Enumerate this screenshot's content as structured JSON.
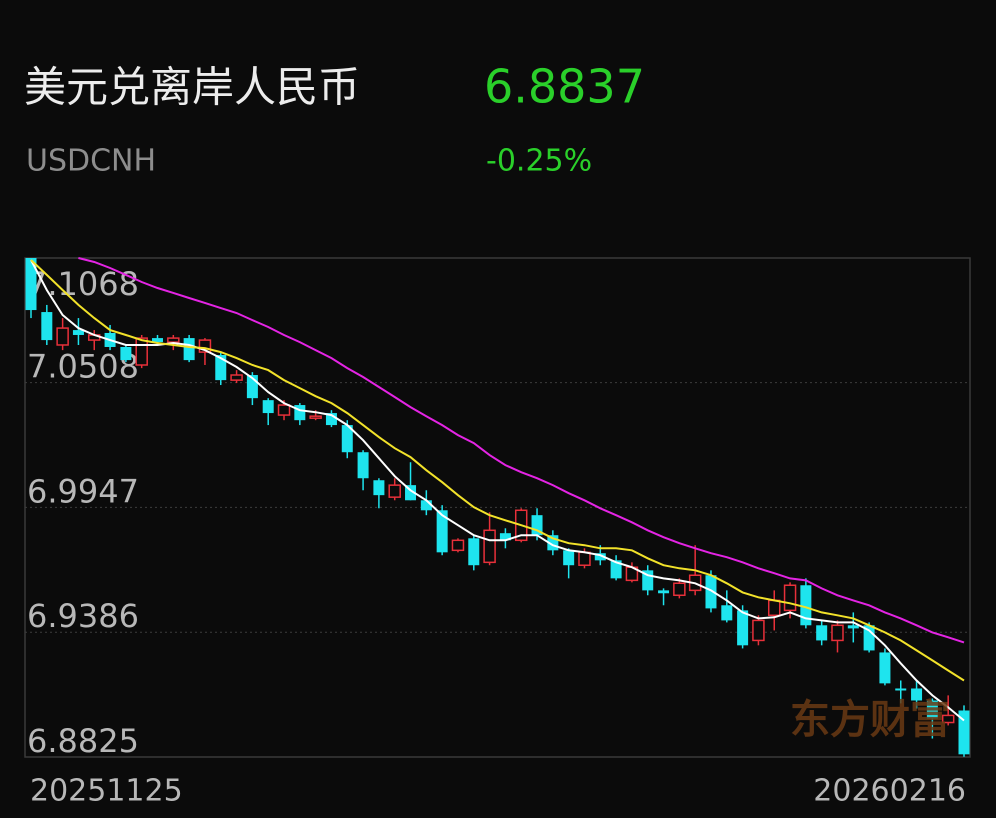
{
  "chart_data": {
    "type": "candlestick",
    "title": "美元兑离岸人民币",
    "price": "6.8837",
    "subtitle": "USDCNH",
    "change": "-0.25%",
    "watermark": "东方财富",
    "categories": [
      "20251125",
      null,
      null,
      null,
      null,
      null,
      null,
      null,
      null,
      null,
      null,
      null,
      null,
      null,
      null,
      null,
      null,
      null,
      null,
      null,
      null,
      null,
      null,
      null,
      null,
      null,
      null,
      null,
      null,
      null,
      null,
      null,
      null,
      null,
      null,
      null,
      null,
      null,
      null,
      null,
      null,
      null,
      null,
      null,
      null,
      null,
      null,
      null,
      null,
      null,
      null,
      null,
      null,
      null,
      null,
      null,
      null,
      null,
      null,
      "20260216"
    ],
    "open": [
      7.1068,
      7.0825,
      7.0677,
      7.0744,
      7.0699,
      7.0731,
      7.0668,
      7.0587,
      7.0708,
      7.069,
      7.0708,
      7.0645,
      7.0632,
      7.0519,
      7.0542,
      7.0429,
      7.0362,
      7.0407,
      7.0348,
      7.0371,
      7.0317,
      7.0195,
      7.0069,
      6.9993,
      7.0047,
      6.9979,
      6.9934,
      6.9754,
      6.9808,
      6.97,
      6.9831,
      6.9799,
      6.9912,
      6.9822,
      6.9754,
      6.9687,
      6.9741,
      6.9709,
      6.9619,
      6.9664,
      6.9574,
      6.9552,
      6.9574,
      6.9642,
      6.9507,
      6.9484,
      6.9349,
      6.9462,
      6.9484,
      6.9597,
      6.9417,
      6.9349,
      6.9417,
      6.9417,
      6.9295,
      6.9133,
      6.9133,
      6.9079,
      6.898,
      6.9034
    ],
    "close": [
      7.0834,
      7.0699,
      7.0753,
      7.0722,
      7.0722,
      7.0668,
      7.0609,
      7.0708,
      7.069,
      7.0708,
      7.0609,
      7.0699,
      7.0519,
      7.0542,
      7.0438,
      7.0371,
      7.0407,
      7.0339,
      7.0357,
      7.0317,
      7.0195,
      7.0078,
      7.0002,
      7.0047,
      6.9979,
      6.9934,
      6.9745,
      6.9799,
      6.9687,
      6.9844,
      6.9799,
      6.9934,
      6.9822,
      6.9754,
      6.9687,
      6.9745,
      6.9709,
      6.9628,
      6.9678,
      6.9574,
      6.9561,
      6.9606,
      6.9642,
      6.9493,
      6.9439,
      6.9327,
      6.9439,
      6.9529,
      6.9597,
      6.9417,
      6.9349,
      6.9417,
      6.9403,
      6.9304,
      6.9156,
      6.9124,
      6.9079,
      6.8998,
      6.9012,
      6.8837
    ],
    "high": [
      7.1068,
      7.0857,
      7.0798,
      7.0798,
      7.0744,
      7.0767,
      7.0677,
      7.0722,
      7.0722,
      7.0722,
      7.0722,
      7.0708,
      7.0645,
      7.0564,
      7.0555,
      7.0438,
      7.0429,
      7.0416,
      7.0384,
      7.0384,
      7.0339,
      7.0204,
      7.0078,
      7.0078,
      7.015,
      7.0024,
      6.9957,
      6.9808,
      6.9822,
      6.9925,
      6.9853,
      6.9943,
      6.9943,
      6.9844,
      6.9763,
      6.9763,
      6.9777,
      6.9732,
      6.97,
      6.9687,
      6.9583,
      6.9628,
      6.9777,
      6.9664,
      6.9574,
      6.9507,
      6.9462,
      6.9574,
      6.961,
      6.9628,
      6.9439,
      6.9439,
      6.9475,
      6.943,
      6.9313,
      6.9169,
      6.9169,
      6.9088,
      6.9102,
      6.9057
    ],
    "low": [
      7.0798,
      7.0677,
      7.0654,
      7.0677,
      7.0654,
      7.0654,
      7.06,
      7.0573,
      7.0677,
      7.0654,
      7.06,
      7.0587,
      7.0497,
      7.0506,
      7.0407,
      7.0317,
      7.0339,
      7.0317,
      7.0339,
      7.0308,
      7.0168,
      7.0024,
      6.9943,
      6.9979,
      6.9979,
      6.9912,
      6.9732,
      6.9745,
      6.9664,
      6.9687,
      6.9763,
      6.979,
      6.9799,
      6.9732,
      6.9628,
      6.9673,
      6.9687,
      6.9619,
      6.961,
      6.9552,
      6.9507,
      6.9538,
      6.9552,
      6.9475,
      6.943,
      6.9313,
      6.9327,
      6.9394,
      6.9448,
      6.9403,
      6.9327,
      6.9295,
      6.934,
      6.9295,
      6.9147,
      6.9066,
      6.9043,
      6.8908,
      6.8967,
      6.8826
    ],
    "up_color": "#e8303a",
    "down_color": "#1ee4ee",
    "lines": [
      {
        "color": "#ffffff",
        "values": [
          7.1059,
          7.0924,
          7.0812,
          7.0753,
          7.0722,
          7.0699,
          7.0677,
          7.0677,
          7.0677,
          7.0686,
          7.0677,
          7.0654,
          7.0618,
          7.0578,
          7.0528,
          7.0465,
          7.0416,
          7.0384,
          7.0375,
          7.0362,
          7.0317,
          7.0249,
          7.0168,
          7.0087,
          7.0024,
          6.9979,
          6.9912,
          6.9867,
          6.9822,
          6.9799,
          6.9799,
          6.9822,
          6.9822,
          6.9777,
          6.9754,
          6.9745,
          6.9732,
          6.97,
          6.9678,
          6.9642,
          6.9628,
          6.9619,
          6.9606,
          6.9574,
          6.9529,
          6.9475,
          6.9448,
          6.9453,
          6.9475,
          6.9448,
          6.9439,
          6.943,
          6.943,
          6.9394,
          6.9327,
          6.9246,
          6.9169,
          6.9102,
          6.9048,
          6.8989
        ]
      },
      {
        "color": "#f2e22a",
        "values": [
          7.1059,
          7.0992,
          7.0924,
          7.0857,
          7.0798,
          7.0744,
          7.0722,
          7.0699,
          7.0686,
          7.0677,
          7.0668,
          7.0663,
          7.0645,
          7.0618,
          7.0587,
          7.0564,
          7.0519,
          7.0483,
          7.0447,
          7.0416,
          7.0371,
          7.0317,
          7.0263,
          7.0213,
          7.0173,
          7.0114,
          7.006,
          7.0002,
          6.9948,
          6.9912,
          6.9889,
          6.9867,
          6.9844,
          6.9808,
          6.9786,
          6.9777,
          6.9763,
          6.9763,
          6.9754,
          6.9718,
          6.9687,
          6.9673,
          6.9664,
          6.9642,
          6.9606,
          6.9565,
          6.9543,
          6.9529,
          6.9516,
          6.9498,
          6.9475,
          6.9462,
          6.9448,
          6.9417,
          6.9385,
          6.9349,
          6.9304,
          6.9259,
          6.9214,
          6.9169
        ]
      },
      {
        "color": "#e424e4",
        "values": [
          null,
          null,
          null,
          7.1068,
          7.105,
          7.1023,
          7.0992,
          7.096,
          7.0933,
          7.0911,
          7.0888,
          7.0866,
          7.0843,
          7.0821,
          7.0789,
          7.0758,
          7.0722,
          7.069,
          7.0654,
          7.0618,
          7.0573,
          7.0533,
          7.0488,
          7.0443,
          7.0398,
          7.0357,
          7.0317,
          7.0272,
          7.0236,
          7.0182,
          7.0137,
          7.0105,
          7.0078,
          7.0047,
          7.0011,
          6.9979,
          6.9943,
          6.9912,
          6.988,
          6.9844,
          6.9813,
          6.9786,
          6.9763,
          6.9741,
          6.9723,
          6.97,
          6.9673,
          6.9651,
          6.9628,
          6.9619,
          6.9583,
          6.9552,
          6.9529,
          6.9507,
          6.9475,
          6.9448,
          6.9417,
          6.9385,
          6.9363,
          6.934
        ]
      }
    ],
    "ylim": [
      6.8825,
      7.1068
    ],
    "yticks": [
      7.1068,
      7.0508,
      6.9947,
      6.9386,
      6.8825
    ],
    "grid": true
  }
}
